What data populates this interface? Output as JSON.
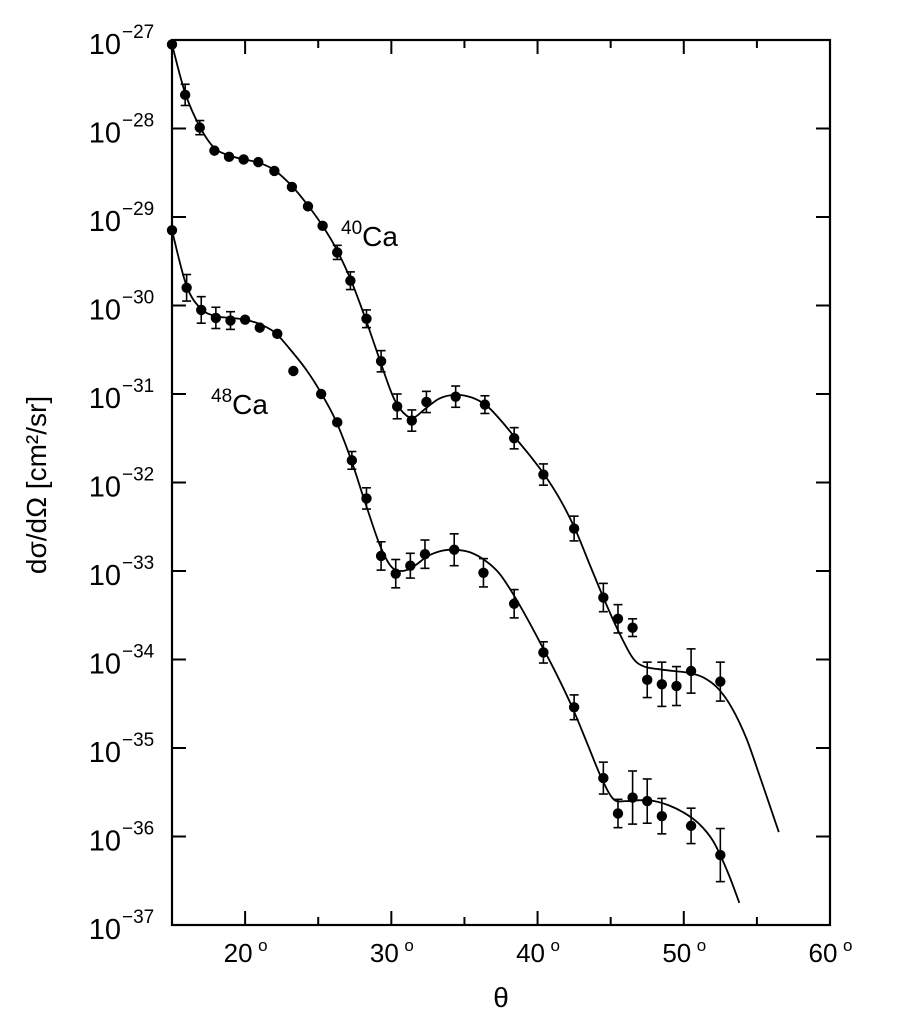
{
  "chart_data": {
    "type": "scatter",
    "xlabel": "θ",
    "ylabel": "dσ/dΩ [cm²/sr]",
    "xlim": [
      15,
      60
    ],
    "ylim_log10": [
      -37,
      -27
    ],
    "y_scale": "log",
    "grid": false,
    "x_ticks": [
      {
        "value": 20,
        "label": "20",
        "sup": "o"
      },
      {
        "value": 30,
        "label": "30",
        "sup": "o"
      },
      {
        "value": 40,
        "label": "40",
        "sup": "o"
      },
      {
        "value": 50,
        "label": "50",
        "sup": "o"
      },
      {
        "value": 60,
        "label": "60",
        "sup": "o"
      }
    ],
    "y_ticks": [
      {
        "exp": -27,
        "base": "10",
        "sup": "−27"
      },
      {
        "exp": -28,
        "base": "10",
        "sup": "−28"
      },
      {
        "exp": -29,
        "base": "10",
        "sup": "−29"
      },
      {
        "exp": -30,
        "base": "10",
        "sup": "−30"
      },
      {
        "exp": -31,
        "base": "10",
        "sup": "−31"
      },
      {
        "exp": -32,
        "base": "10",
        "sup": "−32"
      },
      {
        "exp": -33,
        "base": "10",
        "sup": "−33"
      },
      {
        "exp": -34,
        "base": "10",
        "sup": "−34"
      },
      {
        "exp": -35,
        "base": "10",
        "sup": "−35"
      },
      {
        "exp": -36,
        "base": "10",
        "sup": "−36"
      },
      {
        "exp": -37,
        "base": "10",
        "sup": "−37"
      }
    ],
    "series": [
      {
        "name": "40Ca",
        "label_sup": "40",
        "label_main": "Ca",
        "points": [
          {
            "x": 15.0,
            "log10y": -27.05,
            "err": 0
          },
          {
            "x": 15.9,
            "log10y": -27.62,
            "err": 0.12
          },
          {
            "x": 16.9,
            "log10y": -27.99,
            "err": 0.08
          },
          {
            "x": 17.9,
            "log10y": -28.25,
            "err": 0
          },
          {
            "x": 18.9,
            "log10y": -28.32,
            "err": 0
          },
          {
            "x": 19.9,
            "log10y": -28.35,
            "err": 0
          },
          {
            "x": 20.9,
            "log10y": -28.38,
            "err": 0
          },
          {
            "x": 22.0,
            "log10y": -28.48,
            "err": 0
          },
          {
            "x": 23.2,
            "log10y": -28.66,
            "err": 0
          },
          {
            "x": 24.3,
            "log10y": -28.88,
            "err": 0
          },
          {
            "x": 25.3,
            "log10y": -29.1,
            "err": 0
          },
          {
            "x": 26.3,
            "log10y": -29.4,
            "err": 0.08
          },
          {
            "x": 27.2,
            "log10y": -29.72,
            "err": 0.1
          },
          {
            "x": 28.3,
            "log10y": -30.15,
            "err": 0.1
          },
          {
            "x": 29.3,
            "log10y": -30.63,
            "err": 0.12
          },
          {
            "x": 30.4,
            "log10y": -31.14,
            "err": 0.14
          },
          {
            "x": 31.4,
            "log10y": -31.3,
            "err": 0.12
          },
          {
            "x": 32.4,
            "log10y": -31.09,
            "err": 0.12
          },
          {
            "x": 34.4,
            "log10y": -31.03,
            "err": 0.12
          },
          {
            "x": 36.4,
            "log10y": -31.12,
            "err": 0.1
          },
          {
            "x": 38.4,
            "log10y": -31.5,
            "err": 0.12
          },
          {
            "x": 40.4,
            "log10y": -31.91,
            "err": 0.12
          },
          {
            "x": 42.5,
            "log10y": -32.52,
            "err": 0.14
          },
          {
            "x": 44.5,
            "log10y": -33.3,
            "err": 0.16
          },
          {
            "x": 45.5,
            "log10y": -33.54,
            "err": 0.16
          },
          {
            "x": 46.5,
            "log10y": -33.64,
            "err": 0.1
          },
          {
            "x": 47.5,
            "log10y": -34.23,
            "err": 0.2
          },
          {
            "x": 48.5,
            "log10y": -34.28,
            "err": 0.25
          },
          {
            "x": 49.5,
            "log10y": -34.3,
            "err": 0.22
          },
          {
            "x": 50.5,
            "log10y": -34.13,
            "err": 0.25
          },
          {
            "x": 52.5,
            "log10y": -34.25,
            "err": 0.22
          }
        ]
      },
      {
        "name": "48Ca",
        "label_sup": "48",
        "label_main": "Ca",
        "points": [
          {
            "x": 15.0,
            "log10y": -29.15,
            "err": 0
          },
          {
            "x": 16.0,
            "log10y": -29.8,
            "err": 0.15
          },
          {
            "x": 17.0,
            "log10y": -30.05,
            "err": 0.15
          },
          {
            "x": 18.0,
            "log10y": -30.14,
            "err": 0.12
          },
          {
            "x": 19.0,
            "log10y": -30.17,
            "err": 0.1
          },
          {
            "x": 20.0,
            "log10y": -30.16,
            "err": 0
          },
          {
            "x": 21.0,
            "log10y": -30.25,
            "err": 0
          },
          {
            "x": 22.2,
            "log10y": -30.32,
            "err": 0
          },
          {
            "x": 23.3,
            "log10y": -30.74,
            "err": 0
          },
          {
            "x": 25.2,
            "log10y": -31.0,
            "err": 0
          },
          {
            "x": 26.3,
            "log10y": -31.32,
            "err": 0
          },
          {
            "x": 27.3,
            "log10y": -31.75,
            "err": 0.1
          },
          {
            "x": 28.3,
            "log10y": -32.18,
            "err": 0.12
          },
          {
            "x": 29.3,
            "log10y": -32.83,
            "err": 0.16
          },
          {
            "x": 30.3,
            "log10y": -33.03,
            "err": 0.16
          },
          {
            "x": 31.3,
            "log10y": -32.94,
            "err": 0.14
          },
          {
            "x": 32.3,
            "log10y": -32.81,
            "err": 0.16
          },
          {
            "x": 34.3,
            "log10y": -32.76,
            "err": 0.18
          },
          {
            "x": 36.3,
            "log10y": -33.02,
            "err": 0.16
          },
          {
            "x": 38.4,
            "log10y": -33.37,
            "err": 0.16
          },
          {
            "x": 40.4,
            "log10y": -33.92,
            "err": 0.12
          },
          {
            "x": 42.5,
            "log10y": -34.54,
            "err": 0.14
          },
          {
            "x": 44.5,
            "log10y": -35.34,
            "err": 0.18
          },
          {
            "x": 45.5,
            "log10y": -35.74,
            "err": 0.16
          },
          {
            "x": 46.5,
            "log10y": -35.56,
            "err": 0.3
          },
          {
            "x": 47.5,
            "log10y": -35.6,
            "err": 0.25
          },
          {
            "x": 48.5,
            "log10y": -35.77,
            "err": 0.2
          },
          {
            "x": 50.5,
            "log10y": -35.88,
            "err": 0.2
          },
          {
            "x": 52.5,
            "log10y": -36.21,
            "err": 0.3
          }
        ]
      }
    ],
    "fit_curves": [
      {
        "series": "40Ca",
        "points": [
          [
            15.0,
            -27.05
          ],
          [
            15.9,
            -27.6
          ],
          [
            16.9,
            -27.98
          ],
          [
            17.9,
            -28.22
          ],
          [
            19.0,
            -28.31
          ],
          [
            20.0,
            -28.35
          ],
          [
            21.0,
            -28.39
          ],
          [
            22.0,
            -28.47
          ],
          [
            23.2,
            -28.65
          ],
          [
            24.3,
            -28.87
          ],
          [
            25.3,
            -29.1
          ],
          [
            26.3,
            -29.38
          ],
          [
            27.3,
            -29.74
          ],
          [
            28.3,
            -30.18
          ],
          [
            29.3,
            -30.66
          ],
          [
            30.2,
            -31.06
          ],
          [
            31.0,
            -31.24
          ],
          [
            31.6,
            -31.26
          ],
          [
            32.3,
            -31.17
          ],
          [
            33.3,
            -31.05
          ],
          [
            34.4,
            -31.01
          ],
          [
            35.5,
            -31.04
          ],
          [
            36.5,
            -31.13
          ],
          [
            37.5,
            -31.3
          ],
          [
            38.5,
            -31.5
          ],
          [
            39.5,
            -31.7
          ],
          [
            40.5,
            -31.92
          ],
          [
            41.5,
            -32.18
          ],
          [
            42.5,
            -32.5
          ],
          [
            43.5,
            -32.9
          ],
          [
            44.5,
            -33.3
          ],
          [
            45.5,
            -33.67
          ],
          [
            46.5,
            -33.98
          ],
          [
            47.3,
            -34.08
          ],
          [
            48.3,
            -34.11
          ],
          [
            49.3,
            -34.13
          ],
          [
            50.3,
            -34.15
          ],
          [
            51.3,
            -34.2
          ],
          [
            52.3,
            -34.32
          ],
          [
            53.3,
            -34.55
          ],
          [
            54.3,
            -34.9
          ],
          [
            55.3,
            -35.37
          ],
          [
            56.5,
            -35.95
          ]
        ]
      },
      {
        "series": "48Ca",
        "points": [
          [
            15.0,
            -29.15
          ],
          [
            16.0,
            -29.78
          ],
          [
            17.0,
            -30.04
          ],
          [
            18.0,
            -30.12
          ],
          [
            19.0,
            -30.14
          ],
          [
            20.0,
            -30.16
          ],
          [
            21.0,
            -30.21
          ],
          [
            22.0,
            -30.3
          ],
          [
            23.0,
            -30.48
          ],
          [
            24.2,
            -30.73
          ],
          [
            25.2,
            -30.99
          ],
          [
            26.2,
            -31.3
          ],
          [
            27.2,
            -31.72
          ],
          [
            28.2,
            -32.22
          ],
          [
            29.2,
            -32.7
          ],
          [
            30.0,
            -32.95
          ],
          [
            30.8,
            -33.0
          ],
          [
            31.6,
            -32.94
          ],
          [
            32.5,
            -32.83
          ],
          [
            33.5,
            -32.77
          ],
          [
            34.4,
            -32.76
          ],
          [
            35.4,
            -32.79
          ],
          [
            36.4,
            -32.88
          ],
          [
            37.4,
            -33.03
          ],
          [
            38.4,
            -33.28
          ],
          [
            39.4,
            -33.57
          ],
          [
            40.4,
            -33.88
          ],
          [
            41.4,
            -34.2
          ],
          [
            42.4,
            -34.55
          ],
          [
            43.4,
            -34.95
          ],
          [
            44.4,
            -35.35
          ],
          [
            45.2,
            -35.58
          ],
          [
            46.0,
            -35.6
          ],
          [
            47.0,
            -35.59
          ],
          [
            48.0,
            -35.6
          ],
          [
            49.0,
            -35.65
          ],
          [
            50.0,
            -35.73
          ],
          [
            51.0,
            -35.85
          ],
          [
            52.0,
            -36.05
          ],
          [
            53.0,
            -36.4
          ],
          [
            53.8,
            -36.75
          ]
        ]
      }
    ]
  }
}
